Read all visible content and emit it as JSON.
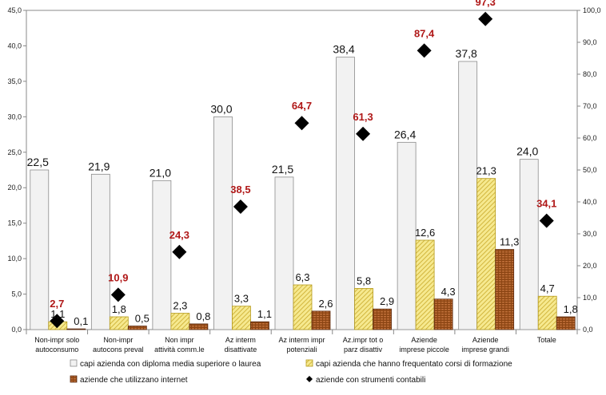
{
  "chart_data": {
    "type": "bar",
    "categories": [
      [
        "Non-impr solo",
        "autoconsumo"
      ],
      [
        "Non-impr",
        "autocons preval"
      ],
      [
        "Non impr",
        "attività comm.le"
      ],
      [
        "Az interm",
        "disattivate"
      ],
      [
        "Az interm impr",
        "potenziali"
      ],
      [
        "Az.impr tot o",
        "parz disattiv"
      ],
      [
        "Aziende",
        "imprese piccole"
      ],
      [
        "Aziende",
        "imprese grandi"
      ],
      [
        "Totale"
      ]
    ],
    "series": [
      {
        "name": "capi azienda con diploma media superiore o laurea",
        "type": "bar",
        "axis": "left",
        "color": "#ededed",
        "stroke": "#7f7f7f",
        "values": [
          22.5,
          21.9,
          21.0,
          30.0,
          21.5,
          38.4,
          26.4,
          37.8,
          24.0
        ],
        "labels": [
          "22,5",
          "21,9",
          "21,0",
          "30,0",
          "21,5",
          "38,4",
          "26,4",
          "37,8",
          "24,0"
        ]
      },
      {
        "name": "capi azienda che hanno frequentato corsi di formazione",
        "type": "bar",
        "axis": "left",
        "color": "#f4e27c",
        "stroke": "#b59a1a",
        "values": [
          1.1,
          1.8,
          2.3,
          3.3,
          6.3,
          5.8,
          12.6,
          21.3,
          4.7
        ],
        "labels": [
          "1,1",
          "1,8",
          "2,3",
          "3,3",
          "6,3",
          "5,8",
          "12,6",
          "21,3",
          "4,7"
        ]
      },
      {
        "name": "aziende che utilizzano internet",
        "type": "bar",
        "axis": "left",
        "color": "#a0522d",
        "stroke": "#5a2a10",
        "values": [
          0.1,
          0.5,
          0.8,
          1.1,
          2.6,
          2.9,
          4.3,
          11.3,
          1.8
        ],
        "labels": [
          "0,1",
          "0,5",
          "0,8",
          "1,1",
          "2,6",
          "2,9",
          "4,3",
          "11,3",
          "1,8"
        ]
      },
      {
        "name": "aziende con strumenti contabili",
        "type": "scatter",
        "axis": "right",
        "color": "#000000",
        "label_color": "#b01818",
        "values": [
          2.7,
          10.9,
          24.3,
          38.5,
          64.7,
          61.3,
          87.4,
          97.3,
          34.1
        ],
        "labels": [
          "2,7",
          "10,9",
          "24,3",
          "38,5",
          "64,7",
          "61,3",
          "87,4",
          "97,3",
          "34,1"
        ]
      }
    ],
    "y_left": {
      "min": 0,
      "max": 45,
      "step": 5,
      "tick_labels": [
        "0,0",
        "5,0",
        "10,0",
        "15,0",
        "20,0",
        "25,0",
        "30,0",
        "35,0",
        "40,0",
        "45,0"
      ]
    },
    "y_right": {
      "min": 0,
      "max": 100,
      "step": 10,
      "tick_labels": [
        "0,0",
        "10,0",
        "20,0",
        "30,0",
        "40,0",
        "50,0",
        "60,0",
        "70,0",
        "80,0",
        "90,0",
        "100,0"
      ]
    },
    "grid": false,
    "legend_position": "bottom",
    "title": "",
    "xlabel": "",
    "ylabel": ""
  }
}
